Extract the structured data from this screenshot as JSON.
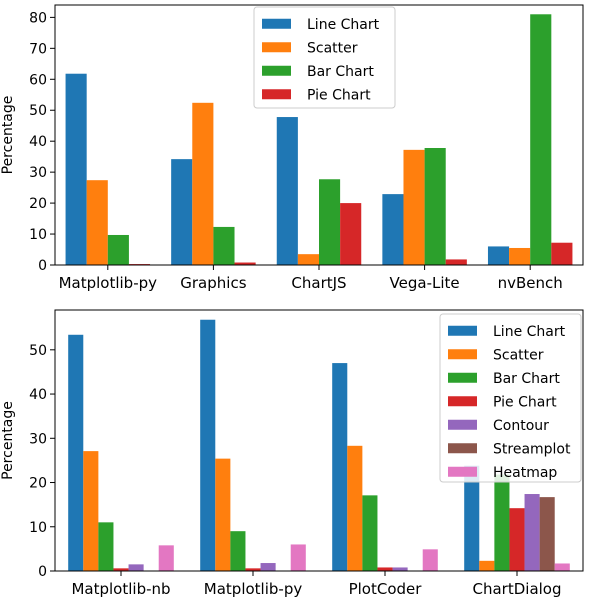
{
  "chart_data": [
    {
      "type": "bar",
      "ylabel": "Percentage",
      "ylim": [
        0,
        84
      ],
      "yticks": [
        0,
        10,
        20,
        30,
        40,
        50,
        60,
        70,
        80
      ],
      "legend_position": "top-center",
      "categories": [
        "Matplotlib-py",
        "Graphics",
        "ChartJS",
        "Vega-Lite",
        "nvBench"
      ],
      "category_colors": [
        "#000000",
        "#000000",
        "#000000",
        "#000000",
        "#d62728"
      ],
      "series": [
        {
          "name": "Line Chart",
          "color": "#1f77b4",
          "values": [
            61.8,
            34.2,
            47.8,
            22.9,
            6.0
          ]
        },
        {
          "name": "Scatter",
          "color": "#ff7f0e",
          "values": [
            27.4,
            52.4,
            3.5,
            37.2,
            5.5
          ]
        },
        {
          "name": "Bar Chart",
          "color": "#2ca02c",
          "values": [
            9.7,
            12.3,
            27.7,
            37.8,
            81.0
          ]
        },
        {
          "name": "Pie Chart",
          "color": "#d62728",
          "values": [
            0.3,
            0.8,
            20.0,
            1.8,
            7.2
          ]
        }
      ]
    },
    {
      "type": "bar",
      "ylabel": "Percentage",
      "ylim": [
        0,
        59
      ],
      "yticks": [
        0,
        10,
        20,
        30,
        40,
        50
      ],
      "legend_position": "top-right",
      "categories": [
        "Matplotlib-nb",
        "Matplotlib-py",
        "PlotCoder",
        "ChartDialog"
      ],
      "category_colors": [
        "#000000",
        "#000000",
        "#d62728",
        "#d62728"
      ],
      "series": [
        {
          "name": "Line Chart",
          "color": "#1f77b4",
          "values": [
            53.4,
            56.8,
            47.0,
            23.8
          ]
        },
        {
          "name": "Scatter",
          "color": "#ff7f0e",
          "values": [
            27.1,
            25.4,
            28.3,
            2.3
          ]
        },
        {
          "name": "Bar Chart",
          "color": "#2ca02c",
          "values": [
            11.0,
            9.0,
            17.1,
            21.8
          ]
        },
        {
          "name": "Pie Chart",
          "color": "#d62728",
          "values": [
            0.6,
            0.6,
            0.8,
            14.2
          ]
        },
        {
          "name": "Contour",
          "color": "#9467bd",
          "values": [
            1.5,
            1.8,
            0.8,
            17.4
          ]
        },
        {
          "name": "Streamplot",
          "color": "#8c564b",
          "values": [
            0.0,
            0.0,
            0.0,
            16.7
          ]
        },
        {
          "name": "Heatmap",
          "color": "#e377c2",
          "values": [
            5.8,
            6.0,
            4.9,
            1.7
          ]
        }
      ]
    }
  ]
}
